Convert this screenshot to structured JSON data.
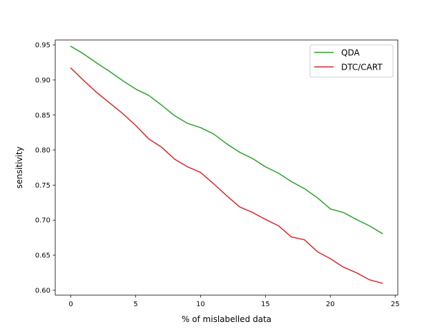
{
  "chart_data": {
    "type": "line",
    "xlabel": "% of mislabelled data",
    "ylabel": "sensitivity",
    "xlim": [
      -1.2,
      25.2
    ],
    "ylim": [
      0.593,
      0.957
    ],
    "xticks": [
      0,
      5,
      10,
      15,
      20,
      25
    ],
    "xtick_labels": [
      "0",
      "5",
      "10",
      "15",
      "20",
      "25"
    ],
    "yticks": [
      0.6,
      0.65,
      0.7,
      0.75,
      0.8,
      0.85,
      0.9,
      0.95
    ],
    "ytick_labels": [
      "0.60",
      "0.65",
      "0.70",
      "0.75",
      "0.80",
      "0.85",
      "0.90",
      "0.95"
    ],
    "grid": false,
    "legend_position": "top-right",
    "x": [
      0,
      1,
      2,
      3,
      4,
      5,
      6,
      7,
      8,
      9,
      10,
      11,
      12,
      13,
      14,
      15,
      16,
      17,
      18,
      19,
      20,
      21,
      22,
      23,
      24
    ],
    "series": [
      {
        "name": "QDA",
        "color": "#2ca02c",
        "values": [
          0.948,
          0.937,
          0.924,
          0.912,
          0.899,
          0.887,
          0.878,
          0.864,
          0.849,
          0.838,
          0.832,
          0.823,
          0.809,
          0.797,
          0.788,
          0.776,
          0.767,
          0.755,
          0.745,
          0.732,
          0.716,
          0.711,
          0.701,
          0.692,
          0.681
        ]
      },
      {
        "name": "DTC/CART",
        "color": "#d62728",
        "values": [
          0.917,
          0.899,
          0.882,
          0.867,
          0.852,
          0.835,
          0.816,
          0.804,
          0.787,
          0.776,
          0.768,
          0.752,
          0.735,
          0.719,
          0.711,
          0.701,
          0.692,
          0.676,
          0.672,
          0.655,
          0.645,
          0.633,
          0.625,
          0.615,
          0.61
        ]
      }
    ]
  }
}
